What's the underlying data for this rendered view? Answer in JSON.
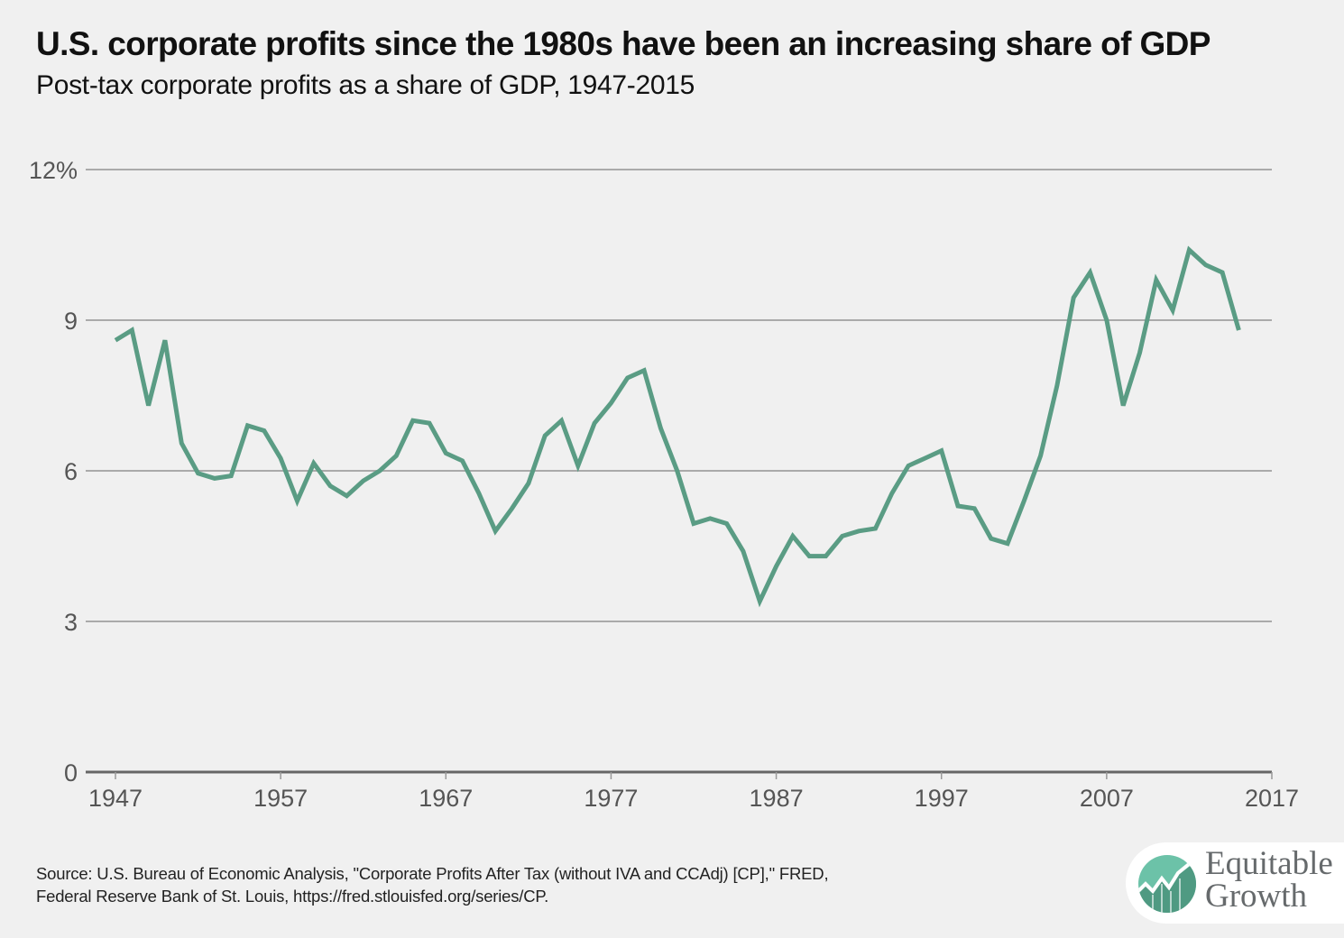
{
  "header": {
    "title": "U.S. corporate profits since the 1980s have been an increasing share of GDP",
    "subtitle": "Post-tax corporate profits as a share of GDP, 1947-2015"
  },
  "footer": {
    "source_line1": "Source: U.S. Bureau of Economic Analysis, \"Corporate Profits After Tax (without IVA and CCAdj) [CP],\" FRED,",
    "source_line2": "Federal Reserve Bank of St. Louis, https://fred.stlouisfed.org/series/CP."
  },
  "logo": {
    "line1": "Equitable",
    "line2": "Growth",
    "icon": "growth-chart-icon",
    "colors": {
      "light": "#6cc2a8",
      "dark": "#4f9a82"
    }
  },
  "colors": {
    "line": "#5a9c84",
    "grid": "#aaaaaa",
    "axis": "#666666",
    "tick_text": "#555555",
    "background": "#f0f0f0"
  },
  "chart_data": {
    "type": "line",
    "title": "U.S. corporate profits since the 1980s have been an increasing share of GDP",
    "subtitle": "Post-tax corporate profits as a share of GDP, 1947-2015",
    "xlabel": "",
    "ylabel": "",
    "xlim": [
      1947,
      2017
    ],
    "ylim": [
      0,
      12
    ],
    "grid": true,
    "legend": "none",
    "x_ticks": [
      1947,
      1957,
      1967,
      1977,
      1987,
      1997,
      2007,
      2017
    ],
    "x_tick_labels": [
      "1947",
      "1957",
      "1967",
      "1977",
      "1987",
      "1997",
      "2007",
      "2017"
    ],
    "y_ticks": [
      0,
      3,
      6,
      9,
      12
    ],
    "y_tick_labels": [
      "0",
      "3",
      "6",
      "9",
      "12%"
    ],
    "series": [
      {
        "name": "Post-tax corporate profits as a share of GDP",
        "x": [
          1947,
          1948,
          1949,
          1950,
          1951,
          1952,
          1953,
          1954,
          1955,
          1956,
          1957,
          1958,
          1959,
          1960,
          1961,
          1962,
          1963,
          1964,
          1965,
          1966,
          1967,
          1968,
          1969,
          1970,
          1971,
          1972,
          1973,
          1974,
          1975,
          1976,
          1977,
          1978,
          1979,
          1980,
          1981,
          1982,
          1983,
          1984,
          1985,
          1986,
          1987,
          1988,
          1989,
          1990,
          1991,
          1992,
          1993,
          1994,
          1995,
          1996,
          1997,
          1998,
          1999,
          2000,
          2001,
          2002,
          2003,
          2004,
          2005,
          2006,
          2007,
          2008,
          2009,
          2010,
          2011,
          2012,
          2013,
          2014,
          2015
        ],
        "values": [
          8.6,
          8.8,
          7.3,
          8.6,
          6.55,
          5.95,
          5.85,
          5.9,
          6.9,
          6.8,
          6.25,
          5.4,
          6.15,
          5.7,
          5.5,
          5.8,
          6.0,
          6.3,
          7.0,
          6.95,
          6.35,
          6.2,
          5.55,
          4.8,
          5.25,
          5.75,
          6.7,
          7.0,
          6.1,
          6.95,
          7.35,
          7.85,
          8.0,
          6.85,
          6.0,
          4.95,
          5.05,
          4.95,
          4.4,
          3.4,
          4.1,
          4.7,
          4.3,
          4.3,
          4.7,
          4.8,
          4.85,
          5.55,
          6.1,
          6.25,
          6.4,
          5.3,
          5.25,
          4.65,
          4.55,
          5.4,
          6.3,
          7.7,
          9.45,
          9.95,
          9.0,
          7.3,
          8.35,
          9.8,
          9.2,
          10.4,
          10.1,
          9.95,
          8.8
        ]
      }
    ]
  }
}
